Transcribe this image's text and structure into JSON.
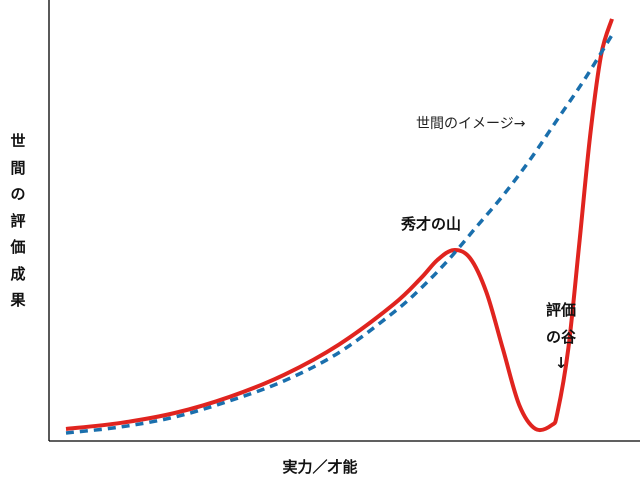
{
  "chart_data": {
    "type": "line",
    "title": "",
    "xlabel": "実力／才能",
    "ylabel": "世間の評価成果",
    "xlim": [
      0,
      100
    ],
    "ylim": [
      0,
      100
    ],
    "grid": false,
    "series": [
      {
        "name": "世間のイメージ",
        "style": "dashed",
        "color": "#1a6fad",
        "x": [
          0,
          10,
          20,
          30,
          40,
          50,
          60,
          65,
          70,
          75,
          80,
          85,
          90,
          95,
          100
        ],
        "y": [
          1,
          2.5,
          5,
          9,
          14,
          21,
          31,
          37,
          44,
          52,
          60,
          69,
          79,
          89,
          100
        ]
      },
      {
        "name": "",
        "style": "solid",
        "color": "#e0241f",
        "x": [
          0,
          10,
          20,
          30,
          40,
          50,
          60,
          65,
          68,
          71,
          74,
          77,
          80,
          83,
          86,
          89,
          90,
          92,
          94,
          96,
          98,
          100
        ],
        "y": [
          2,
          3.5,
          6,
          10,
          15.5,
          23,
          33,
          39.5,
          44,
          46.5,
          44.5,
          36,
          22,
          8,
          2,
          3,
          6,
          22,
          48,
          75,
          95,
          104
        ]
      }
    ],
    "annotations": {
      "line": "世間のイメージ→",
      "peak": "秀才の山",
      "valley": "評価の谷↓"
    }
  }
}
